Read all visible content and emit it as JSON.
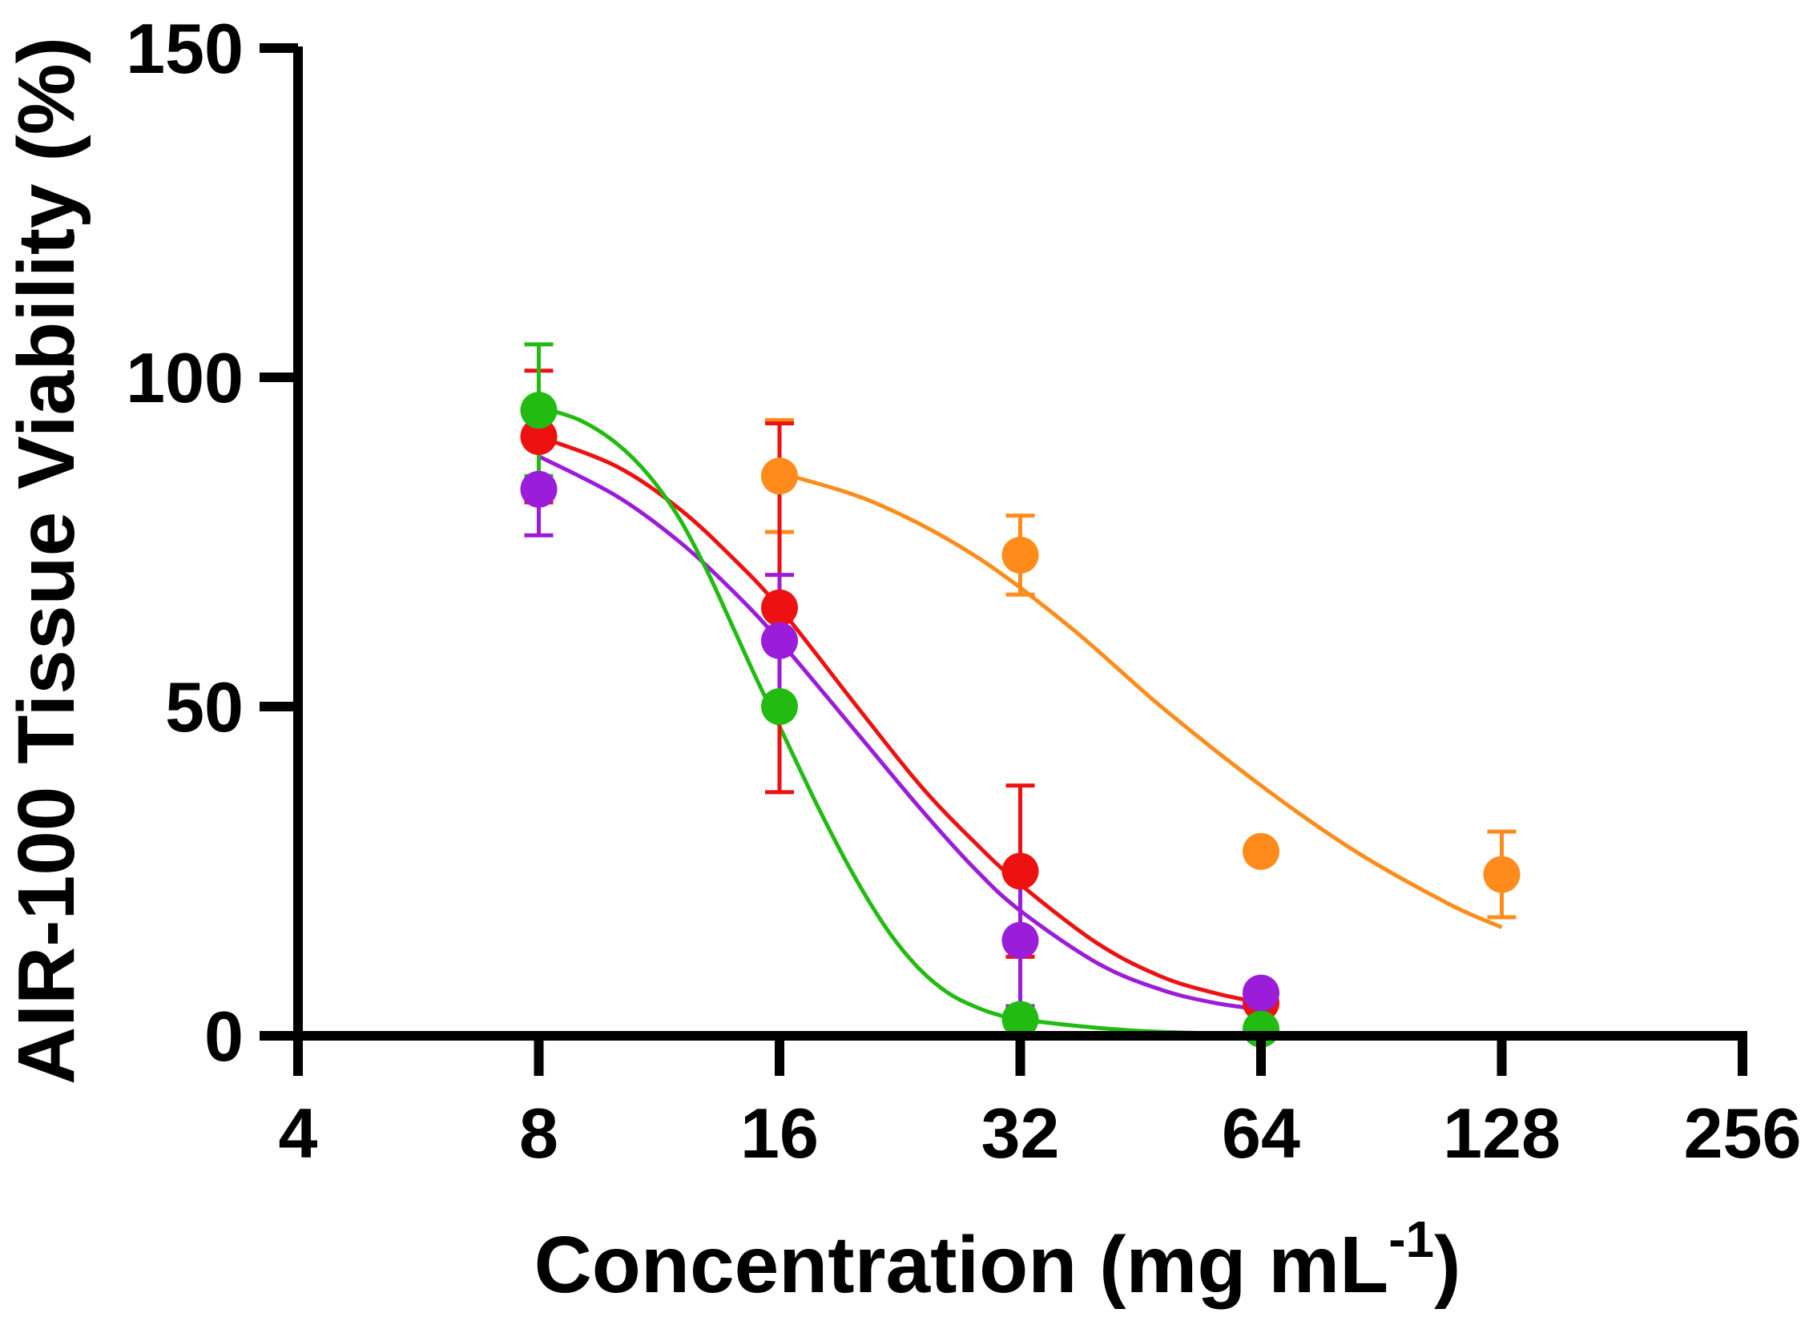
{
  "chart_data": {
    "type": "scatter",
    "title": "",
    "xlabel": "Concentration (mg mL",
    "xlabel_superscript": "-1",
    "xlabel_suffix": ")",
    "ylabel": "AIR-100 Tissue  Viability (%)",
    "x_scale": "log2",
    "xlim": [
      4,
      256
    ],
    "ylim": [
      0,
      150
    ],
    "xticks": [
      4,
      8,
      16,
      32,
      64,
      128,
      256
    ],
    "xtick_labels": [
      "4",
      "8",
      "16",
      "32",
      "64",
      "128",
      "256"
    ],
    "yticks": [
      0,
      50,
      100,
      150
    ],
    "ytick_labels": [
      "0",
      "50",
      "100",
      "150"
    ],
    "grid": false,
    "legend": "none",
    "series": [
      {
        "name": "orange",
        "color": "#ff8c1a",
        "x": [
          16,
          32,
          64,
          128
        ],
        "y": [
          85,
          73,
          28,
          24.5
        ],
        "err": [
          8.5,
          6,
          0,
          6.5
        ],
        "fit_x": [
          16,
          21,
          28,
          37,
          48,
          64,
          84,
          110,
          128
        ],
        "fit_y": [
          85.5,
          81,
          73,
          62,
          50,
          38,
          28,
          20,
          16.5
        ]
      },
      {
        "name": "red",
        "color": "#ee1111",
        "x": [
          8,
          16,
          32,
          64
        ],
        "y": [
          91,
          65,
          25,
          5
        ],
        "err": [
          10,
          28,
          13,
          0
        ],
        "fit_x": [
          8,
          10,
          12,
          14,
          16,
          20,
          24,
          28,
          32,
          40,
          48,
          56,
          64
        ],
        "fit_y": [
          91,
          86.5,
          80,
          72.5,
          65,
          50,
          38,
          29.5,
          23,
          14,
          9,
          6.5,
          5
        ]
      },
      {
        "name": "purple",
        "color": "#9b1cd9",
        "x": [
          8,
          16,
          32,
          64
        ],
        "y": [
          83,
          60,
          14.5,
          6.5
        ],
        "err": [
          7,
          10,
          10,
          0
        ],
        "fit_x": [
          8,
          10,
          12,
          14,
          16,
          20,
          24,
          28,
          32,
          40,
          48,
          56,
          64
        ],
        "fit_y": [
          88,
          82,
          75,
          67.5,
          60,
          46,
          34.5,
          25.5,
          19,
          11,
          7,
          5,
          4
        ]
      },
      {
        "name": "green",
        "color": "#22bb11",
        "x": [
          8,
          16,
          32,
          64
        ],
        "y": [
          95,
          50,
          2.5,
          1
        ],
        "err": [
          10,
          0,
          0,
          0
        ],
        "fit_x": [
          8,
          9,
          10,
          11,
          12,
          13,
          14,
          15,
          16,
          18,
          20,
          22,
          24,
          26,
          28,
          30,
          32,
          40,
          48,
          64
        ],
        "fit_y": [
          95.5,
          93.5,
          90,
          85,
          78.5,
          70.5,
          62,
          54,
          47,
          34,
          23.5,
          15.5,
          10,
          6.5,
          4.5,
          3.2,
          2.5,
          1.2,
          0.6,
          0.2
        ]
      }
    ]
  }
}
